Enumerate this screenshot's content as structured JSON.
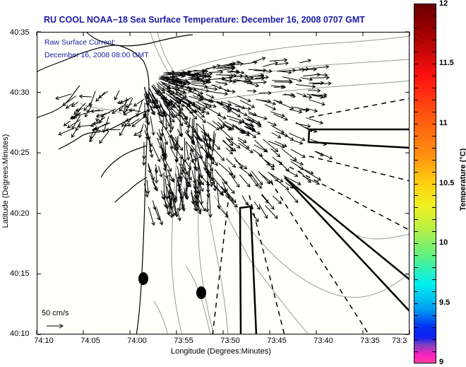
{
  "title": "RU COOL  NOAA−18  Sea Surface Temperature:  December 16, 2008 0707 GMT",
  "annotation": {
    "line1": "Raw Surface Current:",
    "line2": "December 16, 2008 08:00 GMT"
  },
  "scale_vector": {
    "label": "50 cm/s",
    "speed_cm_s": 50
  },
  "axes": {
    "xlabel": "Longitude (Degrees:Minutes)",
    "ylabel": "Latitude (Degrees:Minutes)",
    "xticks": [
      "74:10",
      "74:05",
      "74:00",
      "73:55",
      "73:50",
      "73:45",
      "73:40",
      "73:35",
      "73:3"
    ],
    "yticks": [
      "40:35",
      "40:30",
      "40:25",
      "40:20",
      "40:15",
      "40:10"
    ]
  },
  "colorbar": {
    "label": "Temperature (°C)",
    "ticks": [
      "12",
      "11.5",
      "11",
      "10.5",
      "10",
      "9.5",
      "9"
    ],
    "min": 9,
    "max": 12,
    "colors": {
      "top": "#6b0000",
      "bottom": "#ff40a0"
    }
  },
  "colors": {
    "title": "#1a1aa6",
    "coastline": "#000000",
    "bathymetry": "#999999",
    "vectors": "#000000"
  }
}
